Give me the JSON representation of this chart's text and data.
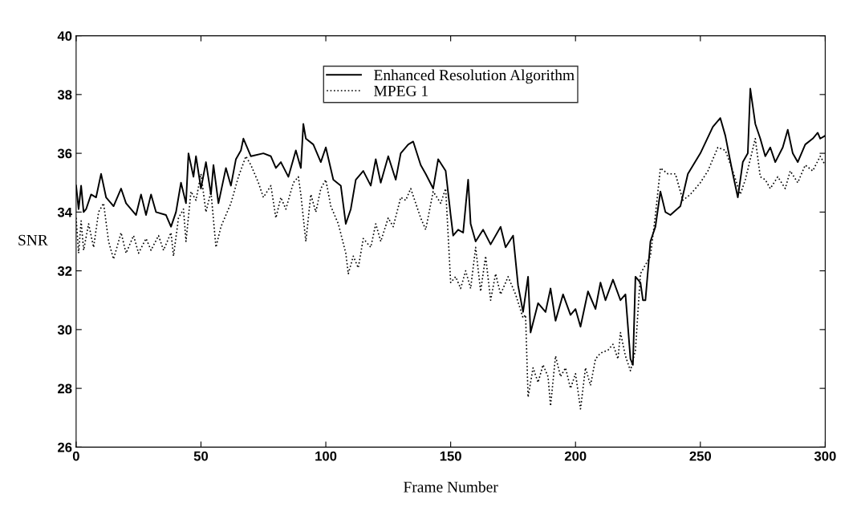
{
  "chart_data": {
    "type": "line",
    "xlabel": "Frame Number",
    "ylabel": "SNR",
    "xlim": [
      0,
      300
    ],
    "xticks": [
      0,
      50,
      100,
      150,
      200,
      250,
      300
    ],
    "ylim": [
      26,
      40
    ],
    "yticks": [
      26,
      28,
      30,
      32,
      34,
      36,
      38,
      40
    ],
    "grid": false,
    "legend": "top",
    "marker": "none",
    "series": [
      {
        "name": "Enhanced Resolution Algorithm",
        "color": "#000000",
        "line_style": "solid",
        "x": [
          0,
          1,
          2,
          3,
          4,
          6,
          8,
          10,
          12,
          15,
          18,
          20,
          24,
          26,
          28,
          30,
          32,
          36,
          38,
          40,
          42,
          44,
          45,
          47,
          48,
          50,
          52,
          54,
          55,
          57,
          60,
          62,
          64,
          66,
          67,
          70,
          75,
          78,
          80,
          82,
          85,
          88,
          90,
          91,
          92,
          95,
          98,
          100,
          103,
          106,
          108,
          110,
          112,
          115,
          118,
          120,
          122,
          125,
          128,
          130,
          133,
          135,
          138,
          140,
          143,
          145,
          148,
          150,
          151,
          153,
          155,
          157,
          158,
          160,
          163,
          166,
          170,
          172,
          175,
          177,
          179,
          181,
          182,
          185,
          188,
          190,
          192,
          195,
          198,
          200,
          202,
          205,
          208,
          210,
          212,
          215,
          218,
          220,
          222,
          223,
          224,
          226,
          227,
          228,
          230,
          232,
          234,
          236,
          238,
          242,
          245,
          250,
          255,
          258,
          260,
          263,
          265,
          267,
          269,
          270,
          272,
          274,
          276,
          278,
          280,
          283,
          285,
          287,
          289,
          292,
          295,
          297,
          298,
          300
        ],
        "values": [
          34.9,
          34.1,
          34.9,
          34.0,
          34.1,
          34.6,
          34.5,
          35.3,
          34.5,
          34.2,
          34.8,
          34.3,
          33.9,
          34.6,
          33.9,
          34.6,
          34.0,
          33.9,
          33.5,
          34.0,
          35.0,
          34.3,
          36.0,
          35.2,
          35.9,
          34.8,
          35.7,
          34.6,
          35.6,
          34.3,
          35.5,
          34.9,
          35.8,
          36.1,
          36.5,
          35.9,
          36.0,
          35.9,
          35.5,
          35.7,
          35.2,
          36.1,
          35.5,
          37.0,
          36.5,
          36.3,
          35.7,
          36.2,
          35.1,
          34.9,
          33.6,
          34.1,
          35.1,
          35.4,
          34.9,
          35.8,
          35.0,
          35.9,
          35.1,
          36.0,
          36.3,
          36.4,
          35.6,
          35.3,
          34.8,
          35.8,
          35.4,
          33.9,
          33.2,
          33.4,
          33.3,
          35.1,
          33.6,
          33.0,
          33.4,
          32.9,
          33.5,
          32.8,
          33.2,
          31.5,
          30.6,
          31.8,
          29.9,
          30.9,
          30.6,
          31.4,
          30.3,
          31.2,
          30.5,
          30.7,
          30.1,
          31.3,
          30.7,
          31.6,
          31.0,
          31.7,
          31.0,
          31.2,
          29.0,
          28.8,
          31.8,
          31.6,
          31.0,
          31.0,
          33.0,
          33.5,
          34.7,
          34.0,
          33.9,
          34.2,
          35.3,
          36.0,
          36.9,
          37.2,
          36.6,
          35.3,
          34.5,
          35.7,
          36.0,
          38.2,
          37.0,
          36.5,
          35.9,
          36.2,
          35.7,
          36.2,
          36.8,
          36.0,
          35.7,
          36.3,
          36.5,
          36.7,
          36.5,
          36.6
        ]
      },
      {
        "name": "MPEG 1",
        "color": "#000000",
        "line_style": "dotted",
        "x": [
          0,
          1,
          2,
          3,
          5,
          7,
          9,
          11,
          13,
          15,
          18,
          20,
          23,
          25,
          28,
          30,
          33,
          35,
          38,
          39,
          41,
          43,
          44,
          46,
          48,
          50,
          52,
          54,
          56,
          58,
          60,
          62,
          65,
          68,
          70,
          73,
          75,
          78,
          80,
          82,
          84,
          87,
          89,
          90,
          92,
          94,
          96,
          98,
          100,
          102,
          105,
          108,
          109,
          111,
          113,
          115,
          118,
          120,
          122,
          125,
          127,
          130,
          132,
          134,
          136,
          138,
          140,
          143,
          146,
          148,
          150,
          152,
          154,
          156,
          158,
          160,
          162,
          164,
          166,
          168,
          170,
          173,
          176,
          179,
          180,
          181,
          183,
          185,
          187,
          189,
          190,
          192,
          194,
          196,
          198,
          200,
          202,
          204,
          206,
          208,
          210,
          213,
          215,
          217,
          218,
          220,
          222,
          224,
          226,
          228,
          230,
          232,
          234,
          237,
          240,
          243,
          246,
          250,
          253,
          257,
          260,
          263,
          266,
          268,
          270,
          272,
          274,
          276,
          278,
          281,
          284,
          286,
          289,
          292,
          295,
          298,
          300
        ],
        "values": [
          33.8,
          32.6,
          33.7,
          32.7,
          33.6,
          32.8,
          34.0,
          34.3,
          33.0,
          32.4,
          33.3,
          32.6,
          33.2,
          32.6,
          33.1,
          32.7,
          33.2,
          32.7,
          33.3,
          32.5,
          33.8,
          34.1,
          33.0,
          34.7,
          34.4,
          35.3,
          34.0,
          34.7,
          32.8,
          33.5,
          33.9,
          34.3,
          35.2,
          35.9,
          35.6,
          35.0,
          34.5,
          34.9,
          33.8,
          34.5,
          34.1,
          35.0,
          35.2,
          34.6,
          33.0,
          34.6,
          34.0,
          34.8,
          35.1,
          34.2,
          33.6,
          32.6,
          31.9,
          32.5,
          32.1,
          33.1,
          32.8,
          33.6,
          33.0,
          33.8,
          33.5,
          34.5,
          34.4,
          34.8,
          34.3,
          33.8,
          33.4,
          34.7,
          34.3,
          34.8,
          31.6,
          31.8,
          31.4,
          32.0,
          31.4,
          32.8,
          31.3,
          32.5,
          31.0,
          31.9,
          31.2,
          31.8,
          31.2,
          30.4,
          30.5,
          27.7,
          28.7,
          28.2,
          28.8,
          28.4,
          27.4,
          29.1,
          28.4,
          28.7,
          28.0,
          28.5,
          27.3,
          28.7,
          28.1,
          29.0,
          29.2,
          29.3,
          29.5,
          29.0,
          29.9,
          29.1,
          28.6,
          29.3,
          31.9,
          32.2,
          32.5,
          33.9,
          35.5,
          35.3,
          35.3,
          34.4,
          34.6,
          35.0,
          35.4,
          36.2,
          36.1,
          35.4,
          34.6,
          35.1,
          35.8,
          36.5,
          35.2,
          35.1,
          34.8,
          35.2,
          34.8,
          35.4,
          35.0,
          35.6,
          35.4,
          35.9,
          35.6
        ]
      }
    ]
  }
}
